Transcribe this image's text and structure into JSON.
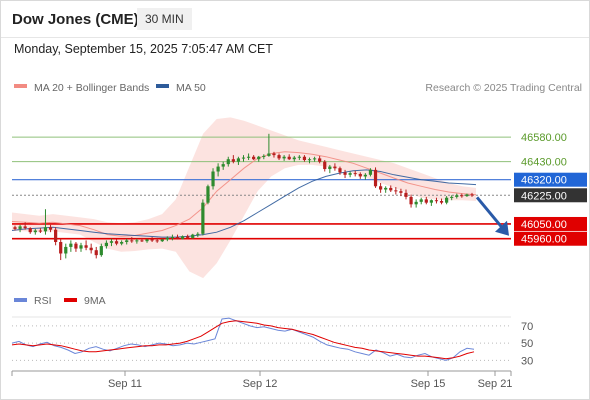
{
  "header": {
    "title": "Dow Jones (CME)",
    "timeframe": "30 MIN",
    "timestamp": "Monday, September 15, 2025 7:05:47 AM CET"
  },
  "legend": {
    "items": [
      {
        "label": "MA 20 + Bollinger Bands",
        "color": "#f28b82"
      },
      {
        "label": "MA 50",
        "color": "#2e5b9a"
      }
    ],
    "credit": "Research © 2025 Trading Central"
  },
  "chart_data": [
    {
      "type": "candlestick",
      "ylim": [
        45690,
        46800
      ],
      "x_ticks": [
        "Sep 11",
        "Sep 12",
        "Sep 15",
        "Sep 21"
      ],
      "levels": [
        {
          "value": 46580,
          "label": "46580.00",
          "kind": "resistance"
        },
        {
          "value": 46430,
          "label": "46430.00",
          "kind": "resistance"
        },
        {
          "value": 46320,
          "label": "46320.00",
          "kind": "pivot"
        },
        {
          "value": 46225,
          "label": "46225.00",
          "kind": "last"
        },
        {
          "value": 46050,
          "label": "46050.00",
          "kind": "support"
        },
        {
          "value": 45960,
          "label": "45960.00",
          "kind": "support"
        }
      ],
      "projection": {
        "from": 46225,
        "to": 45960
      },
      "series": [
        {
          "name": "MA 20 + Bollinger Bands",
          "color": "#f28b82",
          "values": [
            46065,
            46060,
            46055,
            46060,
            46050,
            46040,
            46015,
            45985,
            45975,
            45980,
            45995,
            46010,
            46040,
            46080,
            46150,
            46250,
            46320,
            46390,
            46450,
            46480,
            46490,
            46485,
            46475,
            46460,
            46440,
            46420,
            46390,
            46360,
            46330,
            46300,
            46280,
            46260,
            46245,
            46235,
            46228
          ],
          "upper": [
            46120,
            46110,
            46100,
            46110,
            46100,
            46090,
            46080,
            46060,
            46055,
            46060,
            46080,
            46110,
            46200,
            46400,
            46600,
            46690,
            46700,
            46680,
            46650,
            46620,
            46590,
            46560,
            46540,
            46520,
            46500,
            46480,
            46460,
            46440,
            46420,
            46390,
            46360,
            46330,
            46300,
            46280,
            46270
          ],
          "lower": [
            46010,
            46005,
            46000,
            46005,
            45995,
            45985,
            45940,
            45900,
            45880,
            45885,
            45895,
            45900,
            45880,
            45760,
            45720,
            45810,
            45950,
            46100,
            46250,
            46340,
            46390,
            46410,
            46410,
            46400,
            46380,
            46360,
            46330,
            46300,
            46270,
            46240,
            46210,
            46200,
            46195,
            46195,
            46190
          ]
        },
        {
          "name": "MA 50",
          "color": "#2e5b9a",
          "values": [
            46010,
            46020,
            46025,
            46030,
            46020,
            46010,
            46000,
            45990,
            45985,
            45980,
            45975,
            45970,
            45970,
            45975,
            45985,
            46000,
            46030,
            46070,
            46120,
            46170,
            46220,
            46270,
            46310,
            46340,
            46360,
            46375,
            46380,
            46370,
            46350,
            46335,
            46320,
            46310,
            46300,
            46295,
            46290
          ]
        }
      ],
      "ohlc": [
        [
          46030,
          46040,
          46010,
          46020
        ],
        [
          46020,
          46045,
          46000,
          46035
        ],
        [
          46035,
          46060,
          46015,
          46025
        ],
        [
          46025,
          46030,
          45990,
          46000
        ],
        [
          46000,
          46020,
          45985,
          46010
        ],
        [
          46010,
          46025,
          45995,
          46005
        ],
        [
          46005,
          46140,
          45985,
          46030
        ],
        [
          46030,
          46045,
          46000,
          46015
        ],
        [
          46015,
          46030,
          45920,
          45940
        ],
        [
          45940,
          45960,
          45830,
          45870
        ],
        [
          45870,
          45930,
          45840,
          45910
        ],
        [
          45910,
          45950,
          45880,
          45930
        ],
        [
          45930,
          45940,
          45880,
          45900
        ],
        [
          45900,
          45935,
          45880,
          45920
        ],
        [
          45920,
          45950,
          45890,
          45905
        ],
        [
          45905,
          45930,
          45870,
          45890
        ],
        [
          45890,
          45910,
          45840,
          45860
        ],
        [
          45860,
          45930,
          45850,
          45915
        ],
        [
          45915,
          45950,
          45900,
          45935
        ],
        [
          45935,
          45960,
          45915,
          45945
        ],
        [
          45945,
          45955,
          45920,
          45930
        ],
        [
          45930,
          45950,
          45920,
          45940
        ],
        [
          45940,
          45960,
          45925,
          45950
        ],
        [
          45950,
          45970,
          45935,
          45945
        ],
        [
          45945,
          45960,
          45930,
          45950
        ],
        [
          45950,
          45965,
          45940,
          45945
        ],
        [
          45945,
          45960,
          45935,
          45955
        ],
        [
          45955,
          45970,
          45940,
          45950
        ],
        [
          45950,
          45965,
          45935,
          45945
        ],
        [
          45945,
          45960,
          45940,
          45955
        ],
        [
          45955,
          45975,
          45945,
          45965
        ],
        [
          45965,
          45985,
          45950,
          45970
        ],
        [
          45970,
          45985,
          45955,
          45960
        ],
        [
          45960,
          45980,
          45955,
          45975
        ],
        [
          45975,
          45985,
          45960,
          45965
        ],
        [
          45965,
          45990,
          45960,
          45985
        ],
        [
          45985,
          46000,
          45970,
          45990
        ],
        [
          45990,
          46200,
          45980,
          46180
        ],
        [
          46180,
          46290,
          46170,
          46280
        ],
        [
          46280,
          46390,
          46260,
          46370
        ],
        [
          46370,
          46420,
          46340,
          46400
        ],
        [
          46400,
          46430,
          46380,
          46415
        ],
        [
          46415,
          46460,
          46400,
          46445
        ],
        [
          46445,
          46470,
          46420,
          46430
        ],
        [
          46430,
          46460,
          46410,
          46450
        ],
        [
          46450,
          46470,
          46430,
          46455
        ],
        [
          46455,
          46480,
          46440,
          46460
        ],
        [
          46460,
          46470,
          46440,
          46445
        ],
        [
          46445,
          46465,
          46430,
          46460
        ],
        [
          46460,
          46475,
          46445,
          46465
        ],
        [
          46465,
          46600,
          46460,
          46480
        ],
        [
          46480,
          46490,
          46455,
          46470
        ],
        [
          46470,
          46480,
          46440,
          46450
        ],
        [
          46450,
          46470,
          46435,
          46460
        ],
        [
          46460,
          46475,
          46440,
          46445
        ],
        [
          46445,
          46465,
          46430,
          46455
        ],
        [
          46455,
          46470,
          46440,
          46460
        ],
        [
          46460,
          46470,
          46430,
          46440
        ],
        [
          46440,
          46455,
          46420,
          46445
        ],
        [
          46445,
          46460,
          46430,
          46450
        ],
        [
          46450,
          46465,
          46420,
          46430
        ],
        [
          46430,
          46440,
          46370,
          46385
        ],
        [
          46385,
          46410,
          46360,
          46400
        ],
        [
          46400,
          46420,
          46375,
          46390
        ],
        [
          46390,
          46400,
          46350,
          46365
        ],
        [
          46365,
          46380,
          46330,
          46350
        ],
        [
          46350,
          46370,
          46335,
          46360
        ],
        [
          46360,
          46375,
          46340,
          46355
        ],
        [
          46355,
          46365,
          46325,
          46340
        ],
        [
          46340,
          46360,
          46320,
          46350
        ],
        [
          46350,
          46390,
          46340,
          46380
        ],
        [
          46380,
          46395,
          46270,
          46280
        ],
        [
          46280,
          46300,
          46240,
          46260
        ],
        [
          46260,
          46280,
          46240,
          46270
        ],
        [
          46270,
          46285,
          46245,
          46255
        ],
        [
          46255,
          46275,
          46230,
          46250
        ],
        [
          46250,
          46265,
          46220,
          46240
        ],
        [
          46240,
          46260,
          46200,
          46215
        ],
        [
          46215,
          46230,
          46150,
          46170
        ],
        [
          46170,
          46200,
          46150,
          46185
        ],
        [
          46185,
          46210,
          46170,
          46200
        ],
        [
          46200,
          46215,
          46170,
          46180
        ],
        [
          46180,
          46200,
          46160,
          46195
        ],
        [
          46195,
          46210,
          46175,
          46190
        ],
        [
          46190,
          46205,
          46170,
          46180
        ],
        [
          46180,
          46220,
          46170,
          46210
        ],
        [
          46210,
          46225,
          46195,
          46215
        ],
        [
          46215,
          46235,
          46205,
          46225
        ],
        [
          46225,
          46235,
          46210,
          46220
        ],
        [
          46220,
          46235,
          46215,
          46230
        ],
        [
          46230,
          46240,
          46215,
          46225
        ]
      ]
    },
    {
      "type": "line",
      "ylim": [
        20,
        78
      ],
      "y_ticks": [
        70,
        50,
        30
      ],
      "legend": [
        {
          "label": "RSI",
          "color": "#6a86d8"
        },
        {
          "label": "9MA",
          "color": "#e00000"
        }
      ],
      "series": [
        {
          "name": "RSI",
          "color": "#6a86d8",
          "values": [
            50,
            52,
            48,
            46,
            49,
            51,
            47,
            45,
            42,
            38,
            40,
            44,
            46,
            43,
            41,
            44,
            47,
            49,
            48,
            46,
            48,
            50,
            49,
            47,
            48,
            50,
            49,
            51,
            53,
            55,
            78,
            79,
            76,
            73,
            70,
            68,
            69,
            67,
            65,
            64,
            66,
            63,
            60,
            57,
            52,
            48,
            46,
            44,
            43,
            40,
            38,
            36,
            42,
            39,
            35,
            37,
            34,
            33,
            36,
            38,
            34,
            32,
            30,
            33,
            40,
            44,
            43
          ]
        },
        {
          "name": "9MA",
          "color": "#e00000",
          "values": [
            48,
            49,
            48,
            47,
            48,
            49,
            48,
            47,
            45,
            43,
            41,
            40,
            40,
            41,
            42,
            43,
            44,
            45,
            46,
            47,
            47,
            48,
            48,
            49,
            50,
            52,
            55,
            58,
            63,
            68,
            73,
            75,
            76,
            75,
            74,
            73,
            71,
            70,
            68,
            67,
            66,
            64,
            62,
            60,
            57,
            54,
            51,
            49,
            47,
            45,
            44,
            42,
            41,
            40,
            39,
            38,
            37,
            36,
            35,
            35,
            34,
            33,
            32,
            33,
            35,
            38,
            40
          ]
        }
      ]
    }
  ]
}
